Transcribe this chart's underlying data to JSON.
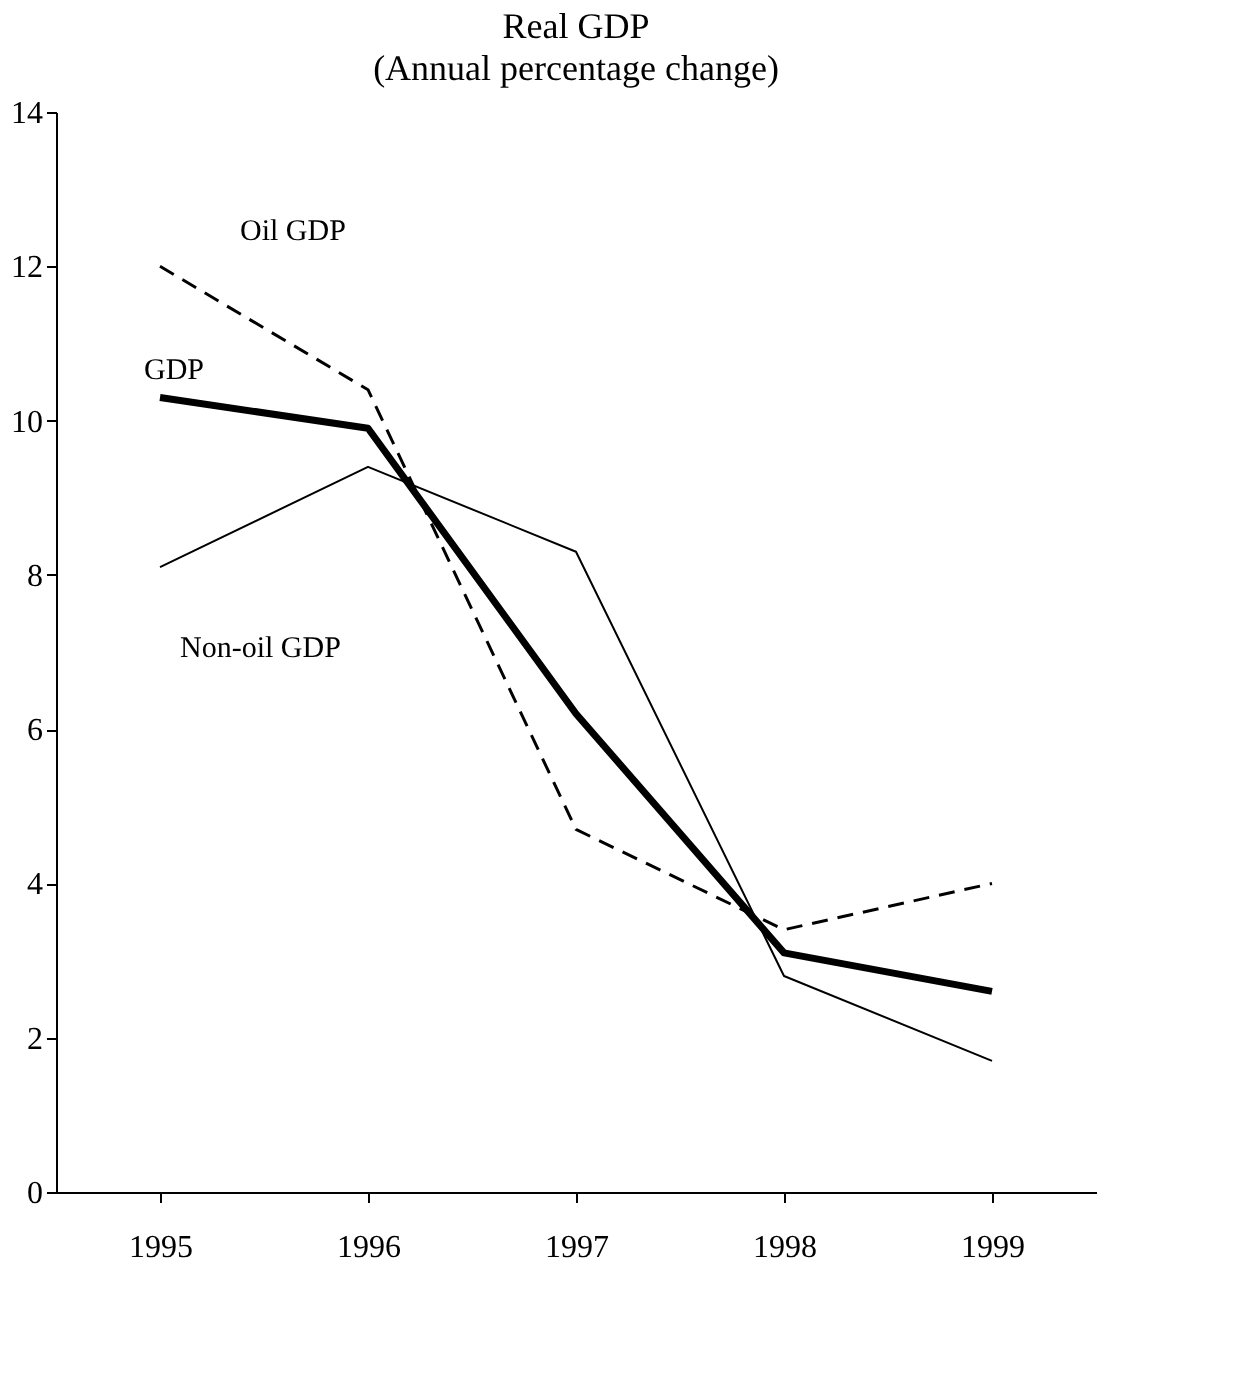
{
  "chart_data": {
    "type": "line",
    "title": "Real GDP",
    "subtitle": "(Annual percentage change)",
    "categories": [
      "1995",
      "1996",
      "1997",
      "1998",
      "1999"
    ],
    "series": [
      {
        "name": "Oil GDP",
        "color": "#000000",
        "line_style": "dashed",
        "values": [
          12.0,
          10.4,
          4.7,
          3.4,
          4.0
        ]
      },
      {
        "name": "GDP",
        "color": "#000000",
        "line_style": "solid",
        "values": [
          10.3,
          9.9,
          6.2,
          3.1,
          2.6
        ]
      },
      {
        "name": "Non-oil GDP",
        "color": "#000000",
        "line_style": "solid",
        "values": [
          8.1,
          9.4,
          8.3,
          2.8,
          1.7
        ]
      }
    ],
    "ylim": [
      0,
      14
    ],
    "yticks": [
      0,
      2,
      4,
      6,
      8,
      10,
      12,
      14
    ],
    "grid": false,
    "legend": false,
    "marker": "none"
  }
}
